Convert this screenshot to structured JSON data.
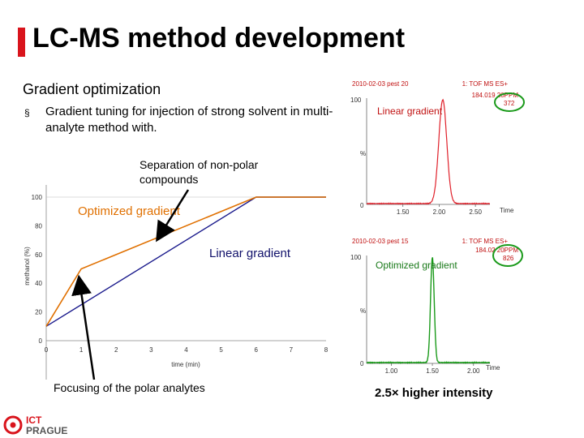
{
  "slide": {
    "title": "LC-MS method development",
    "subtitle": "Gradient optimization",
    "bullet_symbol": "§",
    "bullet_text": "Gradient tuning for injection of strong solvent in multi-analyte method with.",
    "separation_label": "Separation of non-polar compounds",
    "optimized_label": "Optimized gradient",
    "linear_label": "Linear gradient",
    "focusing_label": "Focusing of the polar analytes",
    "intensity_note": "2.5× higher intensity",
    "logo_line1": "ICT",
    "logo_line2": "PRAGUE"
  },
  "colors": {
    "accent": "#d9141c",
    "optimized": "#e07000",
    "linear": "#1a1a8c",
    "peak": "#e0202a",
    "peak_opt": "#1a9a1a",
    "callout_ring": "#1a9a1a"
  },
  "chart_data": [
    {
      "type": "line",
      "xlabel": "time (min)",
      "ylabel": "methanol (%)",
      "xlim": [
        0,
        8
      ],
      "ylim": [
        0,
        100
      ],
      "xticks": [
        "0",
        "1",
        "2",
        "3",
        "4",
        "5",
        "6",
        "7",
        "8"
      ],
      "yticks": [
        "0",
        "20",
        "40",
        "60",
        "80",
        "100"
      ],
      "series": [
        {
          "name": "Optimized gradient",
          "x": [
            0,
            1,
            6,
            8
          ],
          "y": [
            10,
            50,
            100,
            100
          ]
        },
        {
          "name": "Linear gradient",
          "x": [
            0,
            6,
            8
          ],
          "y": [
            10,
            100,
            100
          ]
        }
      ]
    },
    {
      "type": "line",
      "header_left": "2010-02-03 pest 20",
      "header_right": "1: TOF MS ES+",
      "header_mass": "184.019 20PPM",
      "peak_label": "372",
      "trace_label": "Linear gradient",
      "ytop": "100",
      "ymid": "%",
      "ybottom": "0",
      "xlabel": "Time",
      "xlim": [
        1.0,
        2.7
      ],
      "xticks": [
        "1.50",
        "2.00",
        "2.50"
      ],
      "peak_apex": 2.05,
      "peak_relative": 100
    },
    {
      "type": "line",
      "header_left": "2010-02-03 pest 15",
      "header_right": "1: TOF MS ES+",
      "header_mass": "184.02 20PPM",
      "peak_label": "826",
      "trace_label": "Optimized gradient",
      "ytop": "100",
      "ymid": "%",
      "ybottom": "0",
      "xlabel": "Time",
      "xlim": [
        0.7,
        2.2
      ],
      "xticks": [
        "1.00",
        "1.50",
        "2.00"
      ],
      "peak_apex": 1.5,
      "peak_relative": 100
    }
  ]
}
